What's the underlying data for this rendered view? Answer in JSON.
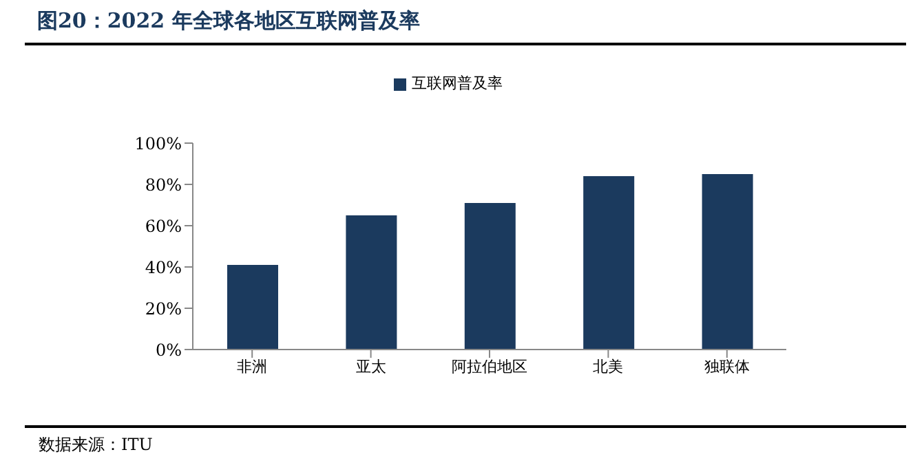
{
  "chart_data": {
    "type": "bar",
    "title": "图20：2022 年全球各地区互联网普及率",
    "categories": [
      "非洲",
      "亚太",
      "阿拉伯地区",
      "北美",
      "独联体"
    ],
    "series": [
      {
        "name": "互联网普及率",
        "color": "#1b3a5e",
        "values": [
          41,
          65,
          71,
          84,
          85
        ]
      }
    ],
    "ylim": [
      0,
      100
    ],
    "yticks": [
      {
        "value": 0,
        "label": "0%"
      },
      {
        "value": 20,
        "label": "20%"
      },
      {
        "value": 40,
        "label": "40%"
      },
      {
        "value": 60,
        "label": "60%"
      },
      {
        "value": 80,
        "label": "80%"
      },
      {
        "value": 100,
        "label": "100%"
      }
    ],
    "grid": false,
    "legend": "top",
    "annotations": [
      "数据来源：ITU"
    ]
  }
}
